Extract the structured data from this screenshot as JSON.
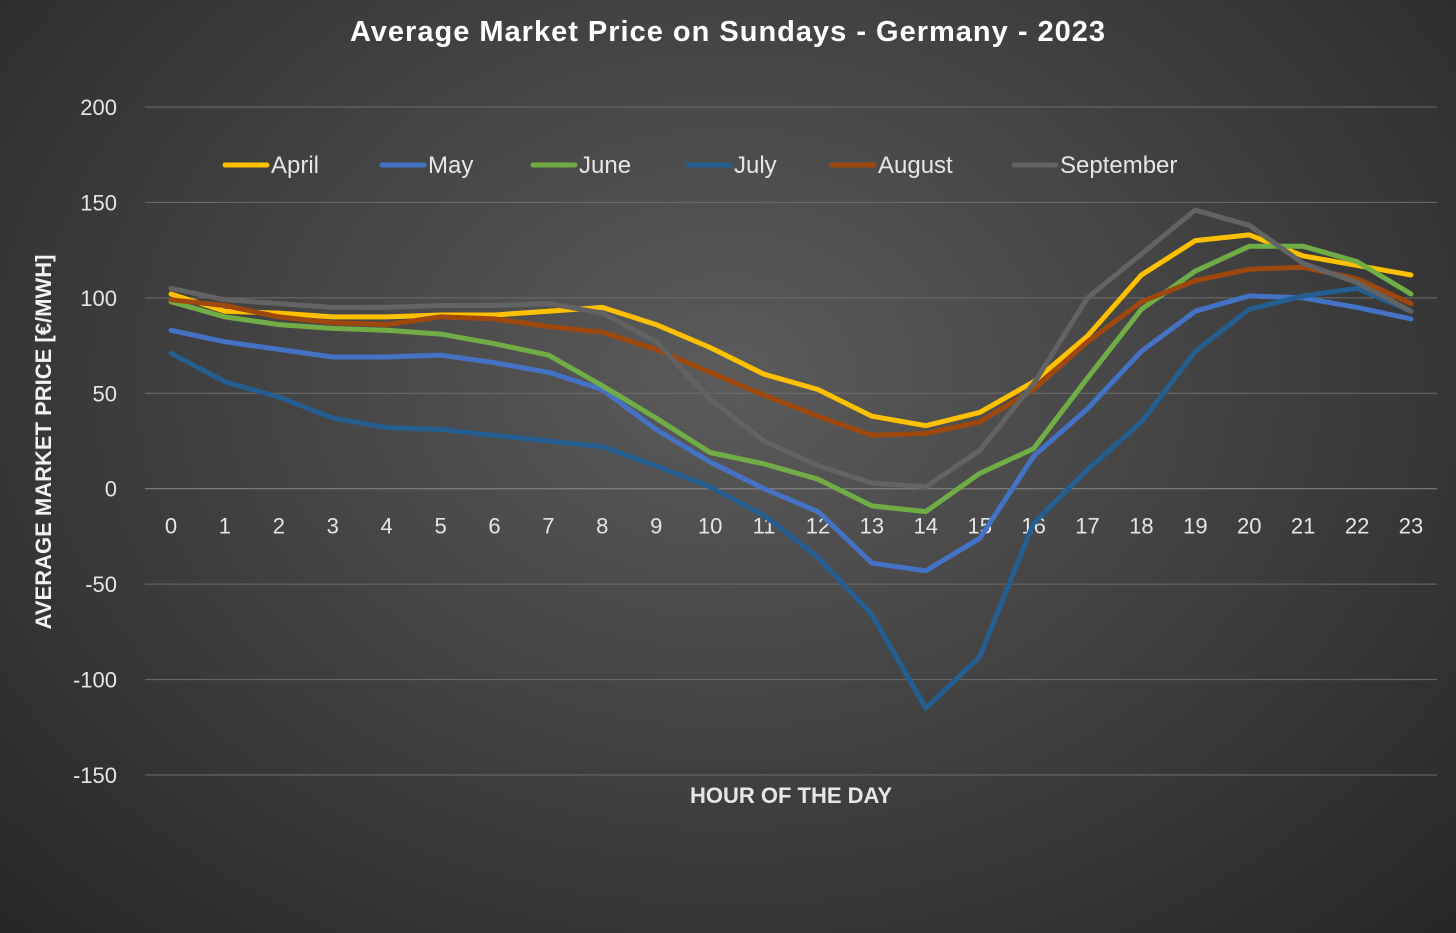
{
  "chart_data": {
    "type": "line",
    "title": "Average Market Price on Sundays - Germany - 2023",
    "xlabel": "HOUR OF THE DAY",
    "ylabel": "AVERAGE MARKET PRICE [€/MWH]",
    "ylim": [
      -150,
      200
    ],
    "yticks": [
      "200",
      "150",
      "100",
      "50",
      "0",
      "-50",
      "-100",
      "-150"
    ],
    "ytick_values": [
      200,
      150,
      100,
      50,
      0,
      -50,
      -100,
      -150
    ],
    "x": [
      "0",
      "1",
      "2",
      "3",
      "4",
      "5",
      "6",
      "7",
      "8",
      "9",
      "10",
      "11",
      "12",
      "13",
      "14",
      "15",
      "16",
      "17",
      "18",
      "19",
      "20",
      "21",
      "22",
      "23"
    ],
    "grid": true,
    "legend_position": "top",
    "series": [
      {
        "name": "April",
        "color": "#FFC000",
        "values": [
          102,
          93,
          92,
          90,
          90,
          91,
          91,
          93,
          95,
          86,
          74,
          60,
          52,
          38,
          33,
          40,
          56,
          80,
          112,
          130,
          133,
          122,
          117,
          112
        ]
      },
      {
        "name": "May",
        "color": "#4472C4",
        "values": [
          83,
          77,
          73,
          69,
          69,
          70,
          66,
          61,
          52,
          31,
          14,
          0,
          -12,
          -39,
          -43,
          -26,
          17,
          42,
          72,
          93,
          101,
          100,
          95,
          89
        ]
      },
      {
        "name": "June",
        "color": "#70AD47",
        "values": [
          98,
          90,
          86,
          84,
          83,
          81,
          76,
          70,
          54,
          37,
          19,
          13,
          5,
          -9,
          -12,
          8,
          21,
          58,
          94,
          114,
          127,
          127,
          119,
          102
        ]
      },
      {
        "name": "July",
        "color": "#255E91",
        "values": [
          71,
          56,
          48,
          37,
          32,
          31,
          28,
          25,
          22,
          12,
          1,
          -14,
          -36,
          -66,
          -115,
          -88,
          -18,
          10,
          35,
          72,
          94,
          101,
          105,
          93
        ]
      },
      {
        "name": "August",
        "color": "#9E480E",
        "values": [
          99,
          96,
          90,
          87,
          86,
          90,
          89,
          85,
          82,
          73,
          61,
          49,
          38,
          28,
          29,
          35,
          52,
          77,
          98,
          109,
          115,
          116,
          110,
          97
        ]
      },
      {
        "name": "September",
        "color": "#636363",
        "values": [
          105,
          99,
          97,
          95,
          95,
          96,
          96,
          97,
          92,
          77,
          47,
          25,
          12,
          3,
          1,
          20,
          55,
          100,
          123,
          146,
          138,
          118,
          108,
          93
        ]
      }
    ]
  }
}
